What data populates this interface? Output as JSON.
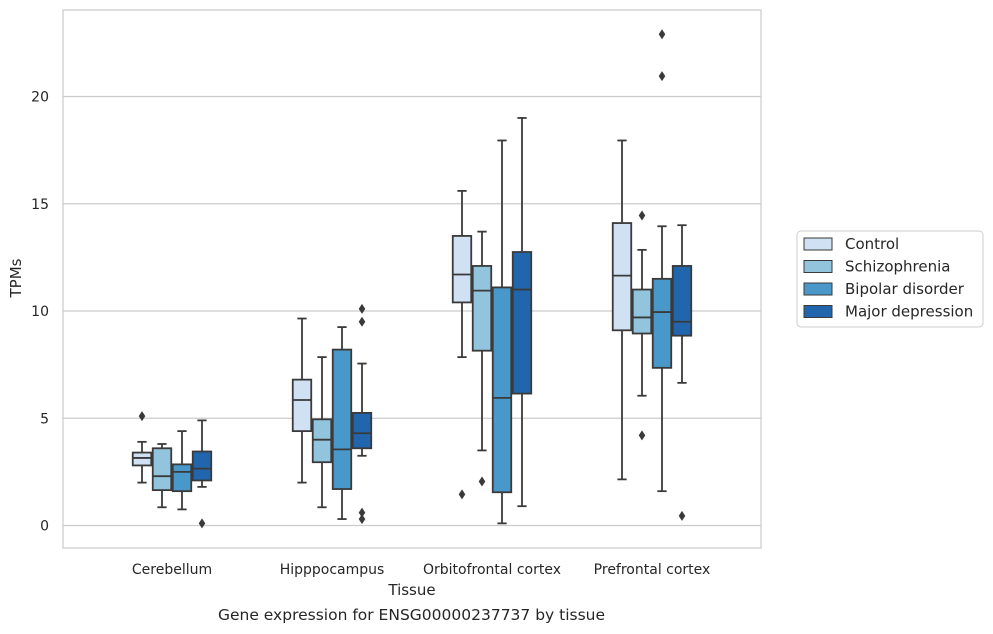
{
  "chart_data": {
    "type": "box",
    "title": "",
    "caption": "Gene expression for ENSG00000237737 by tissue",
    "xlabel": "Tissue",
    "ylabel": "TPMs",
    "ylim": [
      -1,
      24
    ],
    "yticks": [
      0,
      5,
      10,
      15,
      20
    ],
    "grid": "horizontal",
    "legend_position": "right",
    "categories": [
      "Cerebellum",
      "Hipppocampus",
      "Orbitofrontal cortex",
      "Prefrontal cortex"
    ],
    "series": [
      {
        "name": "Control",
        "color": "#cfe1f2",
        "boxes": [
          {
            "whislo": 2.0,
            "q1": 2.8,
            "med": 3.15,
            "q3": 3.4,
            "whishi": 3.9,
            "fliers": [
              5.1
            ]
          },
          {
            "whislo": 2.0,
            "q1": 4.4,
            "med": 5.85,
            "q3": 6.8,
            "whishi": 9.65,
            "fliers": []
          },
          {
            "whislo": 7.85,
            "q1": 10.4,
            "med": 11.7,
            "q3": 13.5,
            "whishi": 15.6,
            "fliers": [
              1.45
            ]
          },
          {
            "whislo": 2.15,
            "q1": 9.1,
            "med": 11.65,
            "q3": 14.1,
            "whishi": 17.95,
            "fliers": []
          }
        ]
      },
      {
        "name": "Schizophrenia",
        "color": "#93c4de",
        "boxes": [
          {
            "whislo": 0.85,
            "q1": 1.65,
            "med": 2.3,
            "q3": 3.6,
            "whishi": 3.8,
            "fliers": []
          },
          {
            "whislo": 0.85,
            "q1": 2.95,
            "med": 4.0,
            "q3": 4.95,
            "whishi": 7.85,
            "fliers": []
          },
          {
            "whislo": 3.5,
            "q1": 8.15,
            "med": 10.95,
            "q3": 12.1,
            "whishi": 13.7,
            "fliers": [
              2.05
            ]
          },
          {
            "whislo": 6.05,
            "q1": 8.95,
            "med": 9.7,
            "q3": 11.0,
            "whishi": 12.85,
            "fliers": [
              14.45,
              4.2
            ]
          }
        ]
      },
      {
        "name": "Bipolar disorder",
        "color": "#4a98c9",
        "boxes": [
          {
            "whislo": 0.75,
            "q1": 1.6,
            "med": 2.5,
            "q3": 2.85,
            "whishi": 4.4,
            "fliers": []
          },
          {
            "whislo": 0.3,
            "q1": 1.7,
            "med": 3.55,
            "q3": 8.2,
            "whishi": 9.25,
            "fliers": []
          },
          {
            "whislo": 0.1,
            "q1": 1.55,
            "med": 5.95,
            "q3": 11.1,
            "whishi": 17.95,
            "fliers": []
          },
          {
            "whislo": 1.6,
            "q1": 7.35,
            "med": 9.95,
            "q3": 11.5,
            "whishi": 13.95,
            "fliers": [
              22.9,
              20.95
            ]
          }
        ]
      },
      {
        "name": "Major depression",
        "color": "#2166ac",
        "boxes": [
          {
            "whislo": 1.8,
            "q1": 2.1,
            "med": 2.65,
            "q3": 3.45,
            "whishi": 4.9,
            "fliers": [
              0.1
            ]
          },
          {
            "whislo": 3.25,
            "q1": 3.6,
            "med": 4.3,
            "q3": 5.25,
            "whishi": 7.55,
            "fliers": [
              10.1,
              9.5,
              0.6,
              0.3
            ]
          },
          {
            "whislo": 0.9,
            "q1": 6.15,
            "med": 11.0,
            "q3": 12.75,
            "whishi": 19.0,
            "fliers": []
          },
          {
            "whislo": 6.65,
            "q1": 8.85,
            "med": 9.5,
            "q3": 12.1,
            "whishi": 14.0,
            "fliers": [
              0.45
            ]
          }
        ]
      }
    ]
  }
}
